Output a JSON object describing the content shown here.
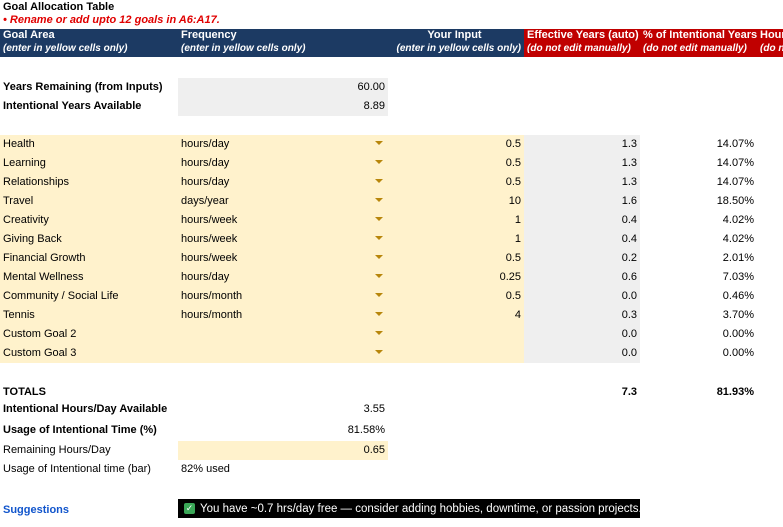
{
  "title": "Goal Allocation Table",
  "note": "• Rename or add upto 12 goals in A6:A17.",
  "columns": [
    {
      "name": "Goal Area",
      "sub": "(enter in yellow cells only)"
    },
    {
      "name": "Frequency",
      "sub": "(enter in yellow cells only)"
    },
    {
      "name": "Your Input",
      "sub": "(enter in yellow cells only)"
    },
    {
      "name": "Effective Years (auto)",
      "sub": "(do not edit manually)"
    },
    {
      "name": "% of Intentional Years",
      "sub": "(do not edit manually)"
    },
    {
      "name": "Hour",
      "sub": "(do n"
    }
  ],
  "summary": [
    {
      "label": "Years Remaining (from Inputs)",
      "value": "60.00"
    },
    {
      "label": "Intentional Years Available",
      "value": "8.89"
    }
  ],
  "goals": [
    [
      "Health",
      "hours/day",
      "0.5",
      "1.3",
      "14.07%"
    ],
    [
      "Learning",
      "hours/day",
      "0.5",
      "1.3",
      "14.07%"
    ],
    [
      "Relationships",
      "hours/day",
      "0.5",
      "1.3",
      "14.07%"
    ],
    [
      "Travel",
      "days/year",
      "10",
      "1.6",
      "18.50%"
    ],
    [
      "Creativity",
      "hours/week",
      "1",
      "0.4",
      "4.02%"
    ],
    [
      "Giving Back",
      "hours/week",
      "1",
      "0.4",
      "4.02%"
    ],
    [
      "Financial Growth",
      "hours/week",
      "0.5",
      "0.2",
      "2.01%"
    ],
    [
      "Mental Wellness",
      "hours/day",
      "0.25",
      "0.6",
      "7.03%"
    ],
    [
      "Community / Social Life",
      "hours/month",
      "0.5",
      "0.0",
      "0.46%"
    ],
    [
      "Tennis",
      "hours/month",
      "4",
      "0.3",
      "3.70%"
    ],
    [
      "Custom Goal 2",
      null,
      null,
      "0.0",
      "0.00%"
    ],
    [
      "Custom Goal 3",
      null,
      null,
      "0.0",
      "0.00%"
    ]
  ],
  "totals": {
    "label": "TOTALS",
    "effective_years": "7.3",
    "percent": "81.93%"
  },
  "metrics": [
    {
      "label": "Intentional Hours/Day Available",
      "value": "3.55"
    },
    {
      "label": "Usage of Intentional Time (%)",
      "value": "81.58%"
    },
    {
      "label": "Remaining Hours/Day",
      "value": "0.65"
    },
    {
      "label": "Usage of Intentional time (bar)",
      "value": "82% used"
    }
  ],
  "suggestions": {
    "label": "Suggestions",
    "message": "You have ~0.7 hrs/day free — consider adding hobbies, downtime, or passion projects."
  }
}
